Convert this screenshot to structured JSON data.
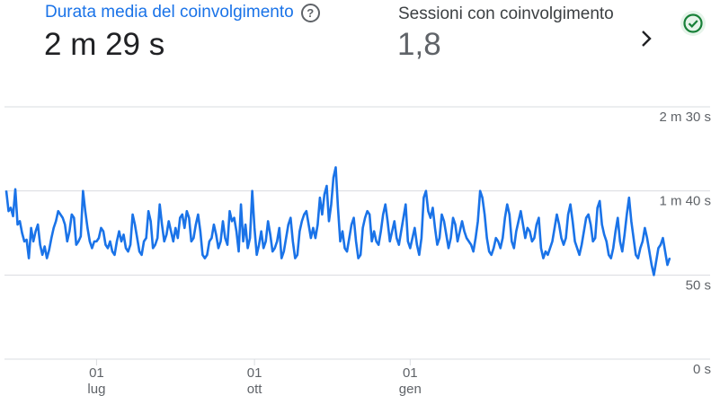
{
  "card": {
    "metric1": {
      "title": "Durata media del coinvolgimento",
      "value": "2 m 29 s",
      "help_icon": "help-circle-icon"
    },
    "metric2": {
      "title": "Sessioni con coinvolgimento",
      "value": "1,8"
    },
    "next_icon": "chevron-right-icon",
    "status_icon": "check-circle-icon",
    "colors": {
      "accent": "#1a73e8",
      "line": "#1a73e8",
      "status_green": "#188038",
      "status_bg": "#e6f4ea",
      "grid": "#dadce0"
    }
  },
  "chart_data": {
    "type": "line",
    "ylim": [
      0,
      150
    ],
    "grid": true,
    "y_ticks": [
      {
        "value": 150,
        "label": "2 m 30 s"
      },
      {
        "value": 100,
        "label": "1 m 40 s"
      },
      {
        "value": 50,
        "label": "50 s"
      },
      {
        "value": 0,
        "label": "0 s"
      }
    ],
    "x_ticks": [
      {
        "index": 40,
        "day": "01",
        "month": "lug"
      },
      {
        "index": 110,
        "day": "01",
        "month": "ott"
      },
      {
        "index": 179,
        "day": "01",
        "month": "gen"
      }
    ],
    "series": [
      {
        "values": [
          100,
          88,
          90,
          85,
          101,
          80,
          82,
          75,
          70,
          71,
          60,
          78,
          70,
          76,
          80,
          68,
          62,
          67,
          60,
          65,
          72,
          78,
          82,
          88,
          86,
          84,
          80,
          70,
          76,
          86,
          84,
          68,
          70,
          73,
          100,
          88,
          78,
          70,
          66,
          70,
          70,
          72,
          78,
          76,
          68,
          66,
          70,
          64,
          62,
          70,
          76,
          70,
          74,
          66,
          64,
          68,
          86,
          80,
          72,
          64,
          62,
          70,
          72,
          88,
          82,
          66,
          68,
          72,
          92,
          80,
          70,
          74,
          82,
          76,
          70,
          78,
          72,
          84,
          86,
          78,
          88,
          84,
          70,
          72,
          80,
          86,
          76,
          62,
          60,
          62,
          70,
          72,
          80,
          74,
          66,
          70,
          82,
          72,
          68,
          88,
          82,
          84,
          76,
          64,
          92,
          70,
          80,
          66,
          72,
          100,
          78,
          62,
          68,
          76,
          66,
          70,
          82,
          74,
          64,
          66,
          70,
          78,
          60,
          64,
          72,
          80,
          84,
          70,
          60,
          62,
          76,
          82,
          86,
          88,
          80,
          72,
          78,
          72,
          80,
          96,
          86,
          98,
          103,
          82,
          92,
          108,
          114,
          90,
          70,
          76,
          66,
          64,
          72,
          80,
          84,
          70,
          60,
          62,
          78,
          84,
          88,
          86,
          70,
          76,
          70,
          68,
          76,
          86,
          92,
          82,
          70,
          76,
          82,
          72,
          68,
          76,
          84,
          92,
          70,
          66,
          72,
          78,
          68,
          62,
          72,
          96,
          100,
          88,
          84,
          90,
          78,
          68,
          72,
          86,
          82,
          74,
          66,
          72,
          84,
          80,
          70,
          76,
          82,
          76,
          72,
          70,
          68,
          64,
          72,
          82,
          100,
          96,
          86,
          72,
          64,
          62,
          66,
          72,
          70,
          66,
          72,
          84,
          92,
          86,
          70,
          66,
          76,
          82,
          88,
          80,
          72,
          78,
          76,
          70,
          72,
          80,
          84,
          66,
          60,
          64,
          62,
          66,
          70,
          78,
          86,
          80,
          72,
          68,
          72,
          86,
          92,
          82,
          70,
          66,
          62,
          68,
          76,
          84,
          86,
          80,
          70,
          72,
          90,
          94,
          80,
          74,
          70,
          62,
          60,
          66,
          76,
          84,
          70,
          64,
          74,
          86,
          96,
          82,
          72,
          62,
          60,
          66,
          70,
          78,
          72,
          64,
          56,
          50,
          58,
          66,
          68,
          72,
          64,
          56,
          60
        ],
        "color": "#1a73e8"
      }
    ]
  }
}
